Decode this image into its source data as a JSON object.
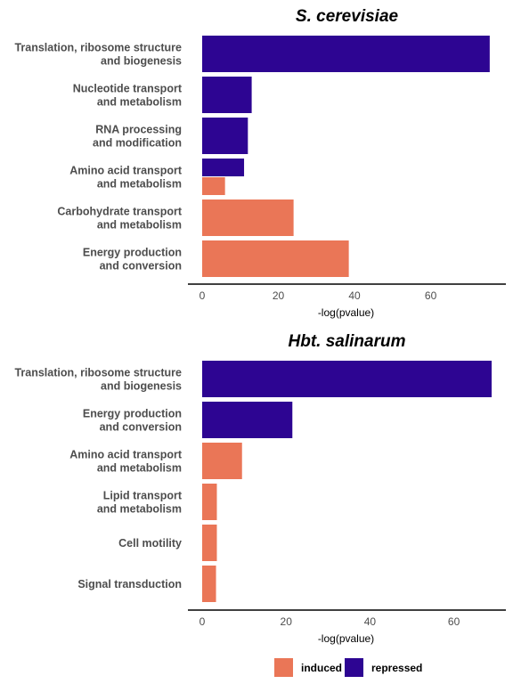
{
  "colors": {
    "induced": "#ea7657",
    "repressed": "#2d0592",
    "axis": "#000000",
    "text": "#4d4d4d"
  },
  "legend": {
    "position": "bottom",
    "items": [
      {
        "key": "induced",
        "label": "induced"
      },
      {
        "key": "repressed",
        "label": "repressed"
      }
    ]
  },
  "chart_data": [
    {
      "type": "bar",
      "orientation": "horizontal",
      "title": "S. cerevisiae",
      "xlabel": "-log(pvalue)",
      "xlim": [
        0,
        76
      ],
      "xticks": [
        0,
        20,
        40,
        60
      ],
      "grid": false,
      "categories": [
        {
          "lines": [
            "Translation, ribosome structure",
            "and biogenesis"
          ],
          "bars": [
            {
              "series": "repressed",
              "value": 75.5
            }
          ]
        },
        {
          "lines": [
            "Nucleotide transport",
            "and metabolism"
          ],
          "bars": [
            {
              "series": "repressed",
              "value": 13
            }
          ]
        },
        {
          "lines": [
            "RNA processing",
            "and modification"
          ],
          "bars": [
            {
              "series": "repressed",
              "value": 12
            }
          ]
        },
        {
          "lines": [
            "Amino acid transport",
            "and metabolism"
          ],
          "bars": [
            {
              "series": "repressed",
              "value": 11
            },
            {
              "series": "induced",
              "value": 6
            }
          ]
        },
        {
          "lines": [
            "Carbohydrate transport",
            "and metabolism"
          ],
          "bars": [
            {
              "series": "induced",
              "value": 24
            }
          ]
        },
        {
          "lines": [
            "Energy production",
            "and conversion"
          ],
          "bars": [
            {
              "series": "induced",
              "value": 38.5
            }
          ]
        }
      ]
    },
    {
      "type": "bar",
      "orientation": "horizontal",
      "title": "Hbt. salinarum",
      "xlabel": "-log(pvalue)",
      "xlim": [
        0,
        69
      ],
      "xticks": [
        0,
        20,
        40,
        60
      ],
      "grid": false,
      "categories": [
        {
          "lines": [
            "Translation, ribosome structure",
            "and biogenesis"
          ],
          "bars": [
            {
              "series": "repressed",
              "value": 69
            }
          ]
        },
        {
          "lines": [
            "Energy production",
            "and conversion"
          ],
          "bars": [
            {
              "series": "repressed",
              "value": 21.5
            }
          ]
        },
        {
          "lines": [
            "Amino acid transport",
            "and metabolism"
          ],
          "bars": [
            {
              "series": "induced",
              "value": 9.5
            }
          ]
        },
        {
          "lines": [
            "Lipid transport",
            "and metabolism"
          ],
          "bars": [
            {
              "series": "induced",
              "value": 3.5
            }
          ]
        },
        {
          "lines": [
            "Cell motility"
          ],
          "bars": [
            {
              "series": "induced",
              "value": 3.5
            }
          ]
        },
        {
          "lines": [
            "Signal transduction"
          ],
          "bars": [
            {
              "series": "induced",
              "value": 3.3
            }
          ]
        }
      ]
    }
  ]
}
